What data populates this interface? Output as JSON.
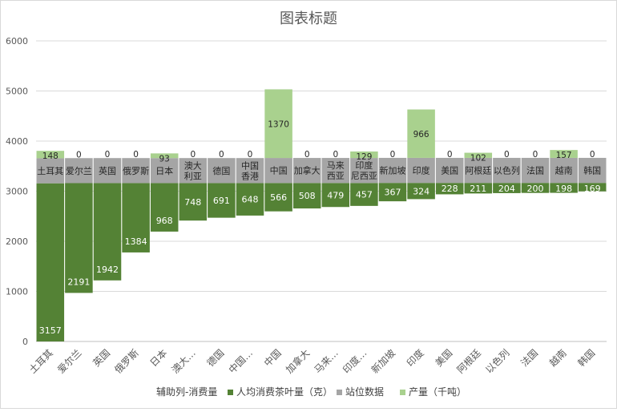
{
  "chart_data": {
    "type": "bar",
    "title": "图表标题",
    "categories": [
      "土耳其",
      "爱尔兰",
      "英国",
      "俄罗斯",
      "日本",
      "澳大利亚",
      "德国",
      "中国香港",
      "中国",
      "加拿大",
      "马来西亚",
      "印度尼西亚",
      "新加坡",
      "印度",
      "美国",
      "阿根廷",
      "以色列",
      "法国",
      "越南",
      "韩国"
    ],
    "x_tick_labels": [
      "土耳其",
      "爱尔兰",
      "英国",
      "俄罗斯",
      "日本",
      "澳大…",
      "德国",
      "中国…",
      "中国",
      "加拿大",
      "马来…",
      "印度…",
      "新加坡",
      "印度",
      "美国",
      "阿根廷",
      "以色列",
      "法国",
      "越南",
      "韩国"
    ],
    "station_labels": [
      "土耳其",
      "爱尔兰",
      "英国",
      "俄罗斯",
      "日本",
      "澳大\n利亚",
      "德国",
      "中国\n香港",
      "中国",
      "加拿大",
      "马来\n西亚",
      "印度\n尼西亚",
      "新加坡",
      "印度",
      "美国",
      "阿根廷",
      "以色列",
      "法国",
      "越南",
      "韩国"
    ],
    "series": [
      {
        "name": "辅助列-消费量",
        "color": "none",
        "values": [
          0,
          969,
          1219,
          1777,
          2193,
          2413,
          2470,
          2513,
          2597,
          2655,
          2684,
          2706,
          2798,
          2841,
          2937,
          2954,
          2961,
          2965,
          2967,
          2996
        ]
      },
      {
        "name": "人均消费茶叶量（克）",
        "color": "#548235",
        "values": [
          3157,
          2191,
          1942,
          1384,
          968,
          748,
          691,
          648,
          566,
          508,
          479,
          457,
          367,
          324,
          228,
          211,
          204,
          200,
          198,
          169
        ]
      },
      {
        "name": "站位数据",
        "color": "#a5a5a5",
        "values": [
          500,
          500,
          500,
          500,
          500,
          500,
          500,
          500,
          500,
          500,
          500,
          500,
          500,
          500,
          500,
          500,
          500,
          500,
          500,
          500
        ]
      },
      {
        "name": "产量（千吨）",
        "color": "#a9d18e",
        "values": [
          148,
          0,
          0,
          0,
          93,
          0,
          0,
          0,
          1370,
          0,
          0,
          129,
          0,
          966,
          0,
          102,
          0,
          0,
          157,
          0
        ]
      }
    ],
    "ylim": [
      0,
      6000
    ],
    "yticks": [
      0,
      1000,
      2000,
      3000,
      4000,
      5000,
      6000
    ],
    "grid": true,
    "legend_position": "bottom"
  }
}
